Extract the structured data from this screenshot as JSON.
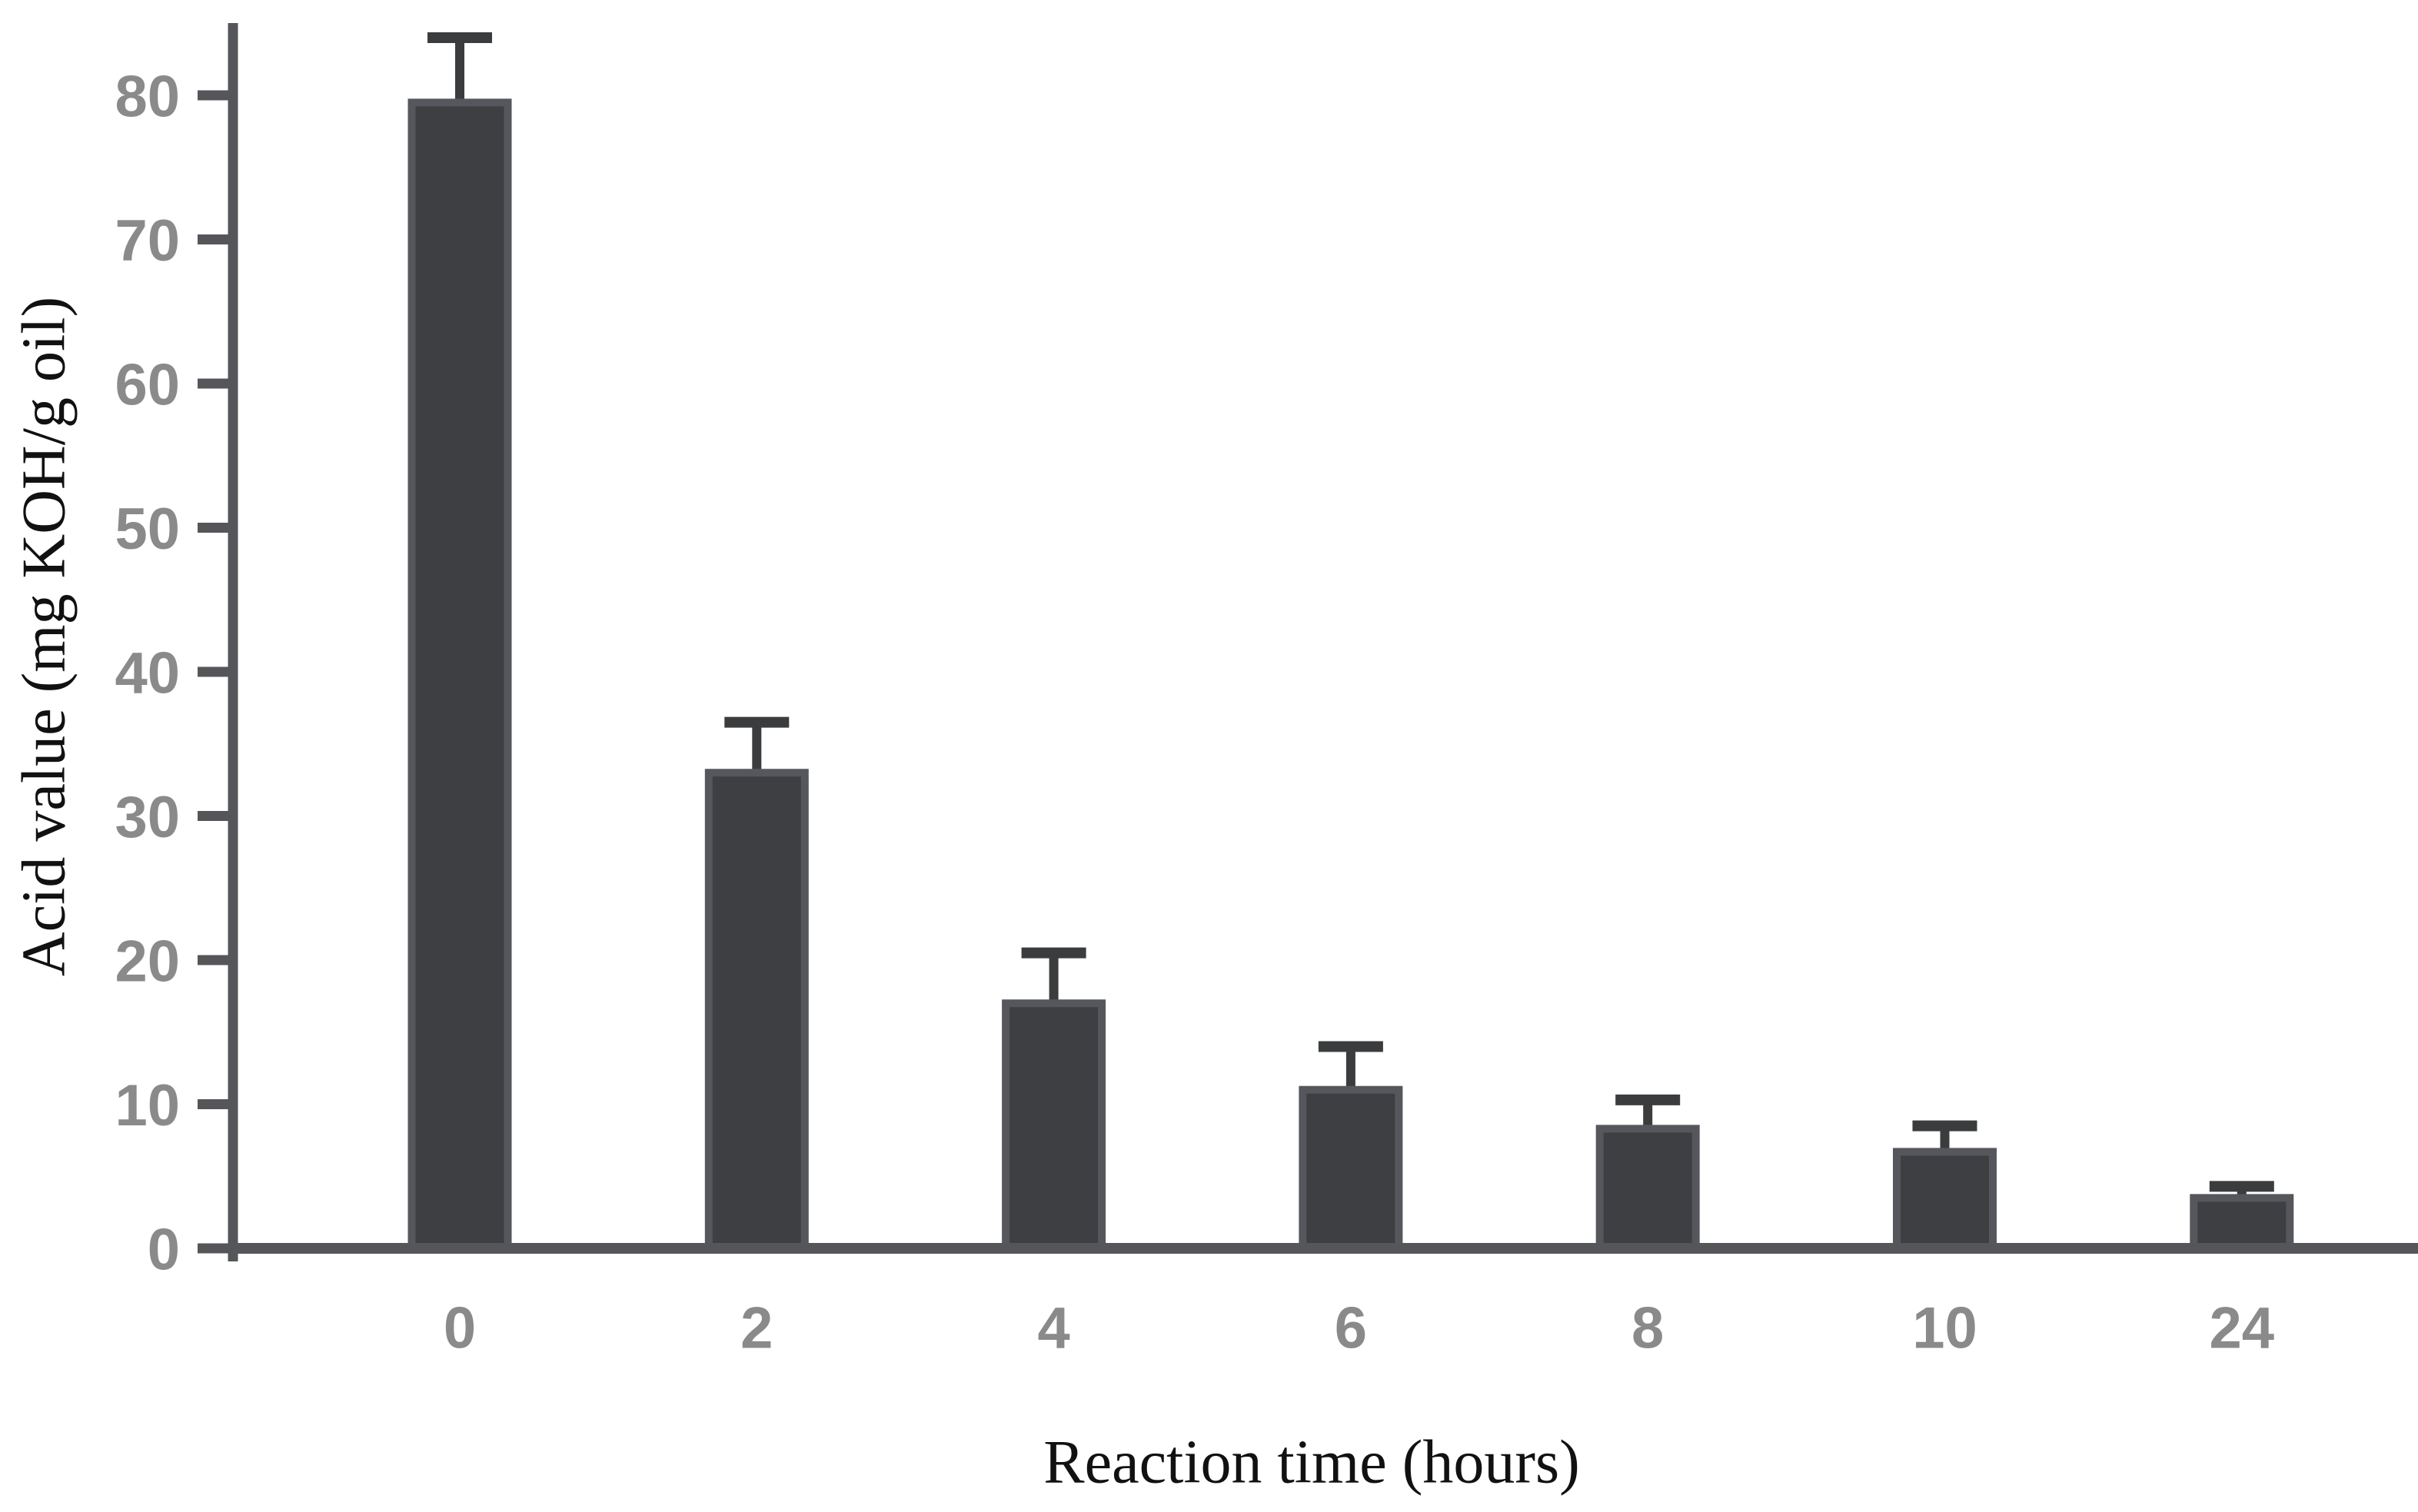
{
  "chart_data": {
    "type": "bar",
    "title": "",
    "xlabel": "Reaction time (hours)",
    "ylabel": "Acid value (mg KOH/g oil)",
    "categories": [
      "0",
      "2",
      "4",
      "6",
      "8",
      "10",
      "24"
    ],
    "series": [
      {
        "name": "Acid value",
        "values": [
          79.5,
          33.0,
          17.0,
          11.0,
          8.3,
          6.7,
          3.5
        ],
        "errors_plus": [
          4.5,
          3.5,
          3.5,
          3.0,
          2.0,
          1.8,
          0.8
        ]
      }
    ],
    "ylim": [
      0,
      85
    ],
    "yticks": [
      0,
      10,
      20,
      30,
      40,
      50,
      60,
      70,
      80
    ],
    "grid": false,
    "legend_position": "none",
    "colors": {
      "bar_fill": "#3d3f42",
      "bar_border": "#55575c",
      "error_bar": "#3a3c3e",
      "axis": "#545659",
      "tick_label": "#8a8a8a",
      "axis_title": "#111111",
      "background": "#ffffff"
    }
  }
}
